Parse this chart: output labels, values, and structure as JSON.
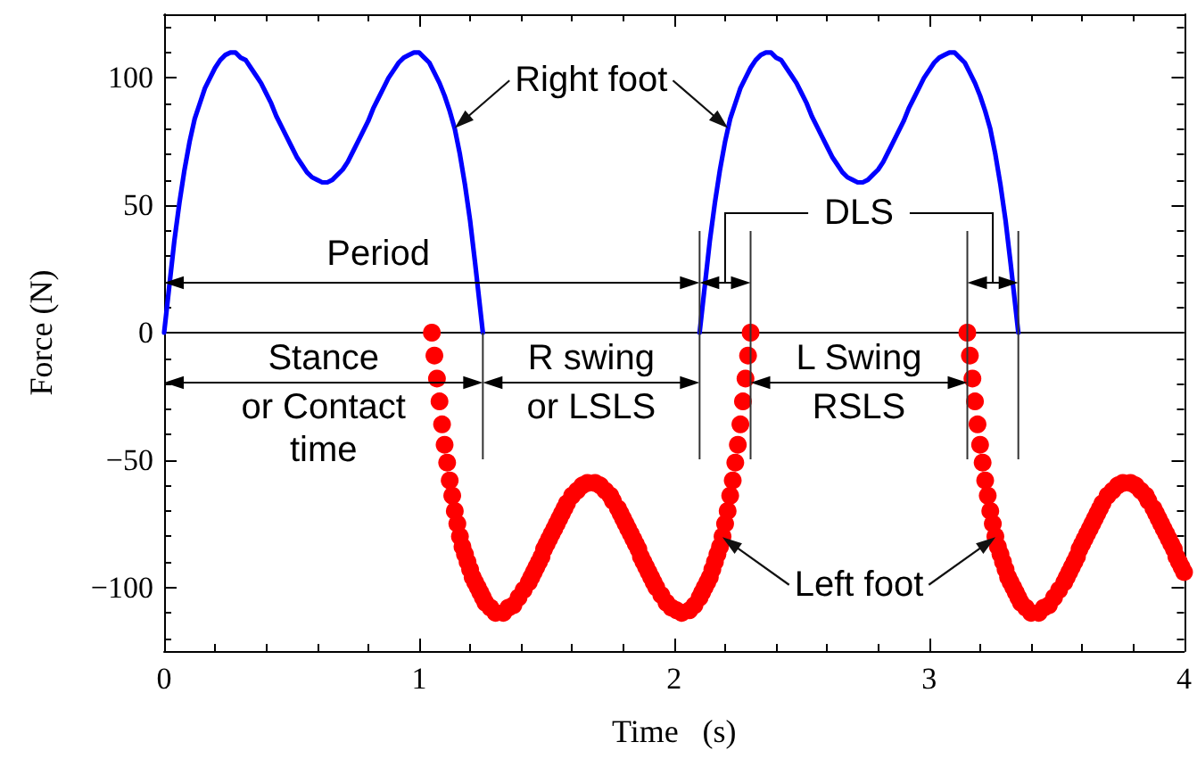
{
  "chart_data": {
    "type": "line",
    "xlabel": "Time   (s)",
    "ylabel": "Force (N)",
    "xlim": [
      0,
      4
    ],
    "xticks": [
      0,
      {
        "value": 0.2,
        "label": null
      },
      {
        "value": 0.4,
        "label": null
      },
      {
        "value": 0.6,
        "label": null
      },
      {
        "value": 0.8,
        "label": null
      },
      1,
      {
        "value": 1.2,
        "label": null
      },
      {
        "value": 1.4,
        "label": null
      },
      {
        "value": 1.6,
        "label": null
      },
      {
        "value": 1.8,
        "label": null
      },
      2,
      {
        "value": 2.2,
        "label": null
      },
      {
        "value": 2.4,
        "label": null
      },
      {
        "value": 2.6,
        "label": null
      },
      {
        "value": 2.8,
        "label": null
      },
      3,
      {
        "value": 3.2,
        "label": null
      },
      {
        "value": 3.4,
        "label": null
      },
      {
        "value": 3.6,
        "label": null
      },
      {
        "value": 3.8,
        "label": null
      },
      4
    ],
    "ylim": [
      -125,
      125
    ],
    "yticks": [
      {
        "value": -120,
        "label": null
      },
      {
        "value": -110,
        "label": null
      },
      {
        "value": -100,
        "label": "−100"
      },
      {
        "value": -90,
        "label": null
      },
      {
        "value": -80,
        "label": null
      },
      {
        "value": -70,
        "label": null
      },
      {
        "value": -60,
        "label": null
      },
      {
        "value": -50,
        "label": "−50"
      },
      {
        "value": -40,
        "label": null
      },
      {
        "value": -30,
        "label": null
      },
      {
        "value": -20,
        "label": null
      },
      {
        "value": -10,
        "label": null
      },
      0,
      {
        "value": 10,
        "label": null
      },
      {
        "value": 20,
        "label": null
      },
      {
        "value": 30,
        "label": null
      },
      {
        "value": 40,
        "label": null
      },
      50,
      {
        "value": 60,
        "label": null
      },
      {
        "value": 70,
        "label": null
      },
      {
        "value": 80,
        "label": null
      },
      {
        "value": 90,
        "label": null
      },
      100,
      {
        "value": 110,
        "label": null
      },
      {
        "value": 120,
        "label": null
      }
    ],
    "series": [
      {
        "name": "Right foot",
        "marker": "none",
        "color": "#0000ff",
        "x": [
          0,
          0.02,
          0.04,
          0.06,
          0.08,
          0.1,
          0.12,
          0.14,
          0.16,
          0.18,
          0.2,
          0.22,
          0.24,
          0.26,
          0.28,
          0.3,
          0.32,
          0.34,
          0.36,
          0.38,
          0.4,
          0.42,
          0.44,
          0.46,
          0.48,
          0.5,
          0.52,
          0.54,
          0.56,
          0.58,
          0.6,
          0.62,
          0.64,
          0.66,
          0.68,
          0.7,
          0.72,
          0.74,
          0.76,
          0.78,
          0.8,
          0.82,
          0.84,
          0.86,
          0.88,
          0.9,
          0.92,
          0.94,
          0.96,
          0.98,
          1,
          1.02,
          1.04,
          1.06,
          1.08,
          1.1,
          1.12,
          1.14,
          1.16,
          1.18,
          1.2,
          1.22,
          1.24,
          1.25,
          1.68,
          2.1,
          2.12,
          2.14,
          2.16,
          2.18,
          2.2,
          2.22,
          2.24,
          2.26,
          2.28,
          2.3,
          2.32,
          2.34,
          2.36,
          2.38,
          2.4,
          2.42,
          2.44,
          2.46,
          2.48,
          2.5,
          2.52,
          2.54,
          2.56,
          2.58,
          2.6,
          2.62,
          2.64,
          2.66,
          2.68,
          2.7,
          2.72,
          2.74,
          2.76,
          2.78,
          2.8,
          2.82,
          2.84,
          2.86,
          2.88,
          2.9,
          2.92,
          2.94,
          2.96,
          2.98,
          3,
          3.02,
          3.04,
          3.06,
          3.08,
          3.1,
          3.12,
          3.14,
          3.16,
          3.18,
          3.2,
          3.22,
          3.24,
          3.26,
          3.28,
          3.3,
          3.32,
          3.34,
          3.35
        ],
        "values": [
          0,
          18,
          36,
          51,
          64,
          75,
          84,
          90,
          96,
          100,
          104,
          107,
          109,
          110,
          110,
          108,
          107,
          104,
          101,
          98,
          94,
          90,
          85,
          81,
          77,
          73,
          69,
          66,
          63,
          61,
          60,
          59,
          59,
          60,
          62,
          64,
          67,
          71,
          75,
          79,
          83,
          88,
          92,
          96,
          100,
          103,
          106,
          108,
          109,
          110,
          110,
          108,
          106,
          102,
          98,
          93,
          87,
          80,
          70,
          58,
          44,
          27,
          9,
          0,
          null,
          0,
          18,
          36,
          51,
          64,
          75,
          84,
          90,
          96,
          100,
          104,
          107,
          109,
          110,
          110,
          108,
          107,
          104,
          101,
          98,
          94,
          90,
          85,
          81,
          77,
          73,
          69,
          66,
          63,
          61,
          60,
          59,
          59,
          60,
          62,
          64,
          67,
          71,
          75,
          79,
          83,
          88,
          92,
          96,
          100,
          103,
          106,
          108,
          109,
          110,
          110,
          108,
          106,
          102,
          98,
          93,
          87,
          80,
          70,
          58,
          44,
          27,
          9,
          0
        ]
      },
      {
        "name": "Left foot",
        "type": "scatter",
        "marker": "circle",
        "color": "#ff0000",
        "x": [
          1.05,
          1.06,
          1.07,
          1.08,
          1.09,
          1.1,
          1.11,
          1.12,
          1.13,
          1.14,
          1.15,
          1.16,
          1.17,
          1.18,
          1.19,
          1.2,
          1.21,
          1.22,
          1.23,
          1.24,
          1.25,
          1.26,
          1.28,
          1.3,
          1.33,
          1.35,
          1.37,
          1.39,
          1.41,
          1.43,
          1.44,
          1.45,
          1.46,
          1.47,
          1.48,
          1.49,
          1.5,
          1.51,
          1.52,
          1.53,
          1.54,
          1.55,
          1.56,
          1.57,
          1.58,
          1.6,
          1.62,
          1.64,
          1.66,
          1.69,
          1.71,
          1.73,
          1.75,
          1.76,
          1.78,
          1.79,
          1.8,
          1.81,
          1.82,
          1.83,
          1.84,
          1.85,
          1.86,
          1.87,
          1.88,
          1.89,
          1.9,
          1.91,
          1.92,
          1.93,
          1.95,
          1.97,
          1.99,
          2.01,
          2.03,
          2.06,
          2.08,
          2.1,
          2.11,
          2.12,
          2.13,
          2.14,
          2.15,
          2.16,
          2.17,
          2.18,
          2.19,
          2.2,
          2.21,
          2.22,
          2.23,
          2.24,
          2.25,
          2.26,
          2.27,
          2.28,
          2.29,
          2.3,
          3.15,
          3.16,
          3.17,
          3.18,
          3.19,
          3.2,
          3.21,
          3.22,
          3.23,
          3.24,
          3.25,
          3.26,
          3.27,
          3.28,
          3.29,
          3.3,
          3.31,
          3.32,
          3.33,
          3.34,
          3.35,
          3.36,
          3.38,
          3.4,
          3.43,
          3.45,
          3.47,
          3.49,
          3.51,
          3.53,
          3.54,
          3.55,
          3.56,
          3.57,
          3.58,
          3.59,
          3.6,
          3.61,
          3.62,
          3.63,
          3.64,
          3.65,
          3.66,
          3.67,
          3.68,
          3.7,
          3.72,
          3.74,
          3.76,
          3.79,
          3.81,
          3.83,
          3.85,
          3.86,
          3.88,
          3.89,
          3.9,
          3.91,
          3.92,
          3.93,
          3.94,
          3.95,
          3.96,
          3.97,
          3.98,
          3.99,
          4
        ],
        "values": [
          0,
          -9,
          -18,
          -27,
          -36,
          -44,
          -51,
          -58,
          -64,
          -70,
          -75,
          -80,
          -84,
          -87,
          -90,
          -93,
          -96,
          -98,
          -100,
          -102,
          -104,
          -106,
          -108,
          -110,
          -110,
          -108,
          -107,
          -104,
          -101,
          -98,
          -96,
          -94,
          -92,
          -90,
          -88,
          -85,
          -83,
          -81,
          -79,
          -77,
          -75,
          -73,
          -71,
          -69,
          -67,
          -64,
          -62,
          -60,
          -59,
          -59,
          -60,
          -62,
          -64,
          -66,
          -69,
          -71,
          -73,
          -75,
          -77,
          -79,
          -81,
          -83,
          -85,
          -88,
          -90,
          -92,
          -94,
          -96,
          -98,
          -100,
          -103,
          -106,
          -108,
          -109,
          -110,
          -109,
          -107,
          -104,
          -102,
          -100,
          -98,
          -96,
          -93,
          -90,
          -87,
          -84,
          -80,
          -75,
          -70,
          -64,
          -58,
          -51,
          -44,
          -36,
          -27,
          -18,
          -9,
          0,
          0,
          -9,
          -18,
          -27,
          -36,
          -44,
          -51,
          -58,
          -64,
          -70,
          -75,
          -80,
          -84,
          -87,
          -90,
          -93,
          -96,
          -98,
          -100,
          -102,
          -104,
          -106,
          -108,
          -110,
          -110,
          -108,
          -107,
          -104,
          -101,
          -98,
          -96,
          -94,
          -92,
          -90,
          -88,
          -85,
          -83,
          -81,
          -79,
          -77,
          -75,
          -73,
          -71,
          -69,
          -67,
          -64,
          -62,
          -60,
          -59,
          -59,
          -60,
          -62,
          -64,
          -66,
          -69,
          -71,
          -73,
          -75,
          -77,
          -79,
          -81,
          -83,
          -85,
          -88,
          -90,
          -92,
          -94
        ]
      }
    ],
    "ref_lines": [
      {
        "axis": "y",
        "value": 0,
        "color": "#000000"
      }
    ],
    "annotations": [
      "Period",
      "Stance\nor Contact\ntime",
      "R swing\nor LSLS",
      "DLS",
      "L Swing\nRSLS"
    ]
  }
}
